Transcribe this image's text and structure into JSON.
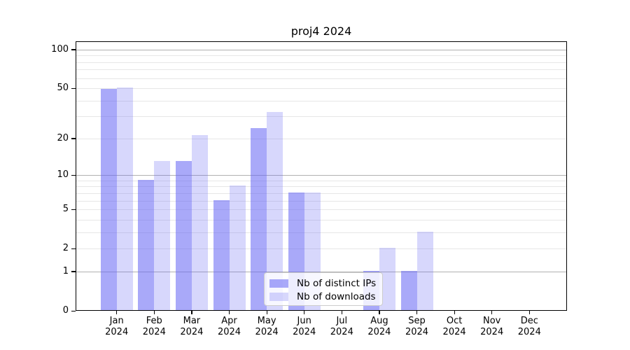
{
  "title": "proj4 2024",
  "chart_data": {
    "type": "bar",
    "scale": "log1p",
    "title": "proj4 2024",
    "xlabel": "",
    "ylabel": "",
    "categories": [
      "Jan",
      "Feb",
      "Mar",
      "Apr",
      "May",
      "Jun",
      "Jul",
      "Aug",
      "Sep",
      "Oct",
      "Nov",
      "Dec"
    ],
    "category_year": "2024",
    "series": [
      {
        "name": "Nb of distinct IPs",
        "color": "#6565F58F",
        "values": [
          49,
          9,
          13,
          6,
          24,
          7,
          0,
          1,
          1,
          0,
          0,
          0
        ]
      },
      {
        "name": "Nb of downloads",
        "color": "#6565F542",
        "values": [
          50,
          13,
          21,
          8,
          32,
          7,
          0,
          2,
          3,
          0,
          0,
          0
        ]
      }
    ],
    "ylim": [
      0,
      116
    ],
    "yticks": [
      0,
      1,
      2,
      5,
      10,
      20,
      50,
      100
    ],
    "major_gridlines": [
      1,
      10,
      100
    ],
    "minor_gridlines": [
      2,
      3,
      4,
      5,
      6,
      7,
      8,
      9,
      20,
      30,
      40,
      50,
      60,
      70,
      80,
      90
    ],
    "grid": true,
    "legend_position": "lower center"
  },
  "colors": {
    "background": "#ffffff",
    "spine": "#000000",
    "grid_major": "#b0b0b0",
    "grid_minor": "#e7e7e7",
    "text": "#000000",
    "legend_border": "#cccccc"
  }
}
